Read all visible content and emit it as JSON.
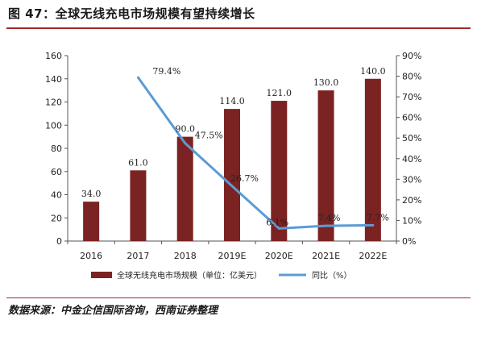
{
  "figure": {
    "title": "图 47：全球无线充电市场规模有望持续增长",
    "source": "数据来源：中金企信国际咨询，西南证券整理"
  },
  "colors": {
    "bar": "#7b2323",
    "line": "#5b9bd5",
    "rule": "#9a2b2b"
  },
  "chart_data": {
    "type": "bar",
    "categories": [
      "2016",
      "2017",
      "2018",
      "2019E",
      "2020E",
      "2021E",
      "2022E"
    ],
    "series": [
      {
        "name": "全球无线充电市场规模（单位：亿美元）",
        "type": "bar",
        "axis": "left",
        "values": [
          34.0,
          61.0,
          90.0,
          114.0,
          121.0,
          130.0,
          140.0
        ],
        "labels": [
          "34.0",
          "61.0",
          "90.0",
          "114.0",
          "121.0",
          "130.0",
          "140.0"
        ]
      },
      {
        "name": "同比（%）",
        "type": "line",
        "axis": "right",
        "values": [
          null,
          79.4,
          47.5,
          26.7,
          6.1,
          7.4,
          7.7
        ],
        "labels": [
          "",
          "79.4%",
          "47.5%",
          "26.7%",
          "6.1%",
          "7.4%",
          "7.7%"
        ]
      }
    ],
    "y_left": {
      "lim": [
        0,
        160
      ],
      "ticks": [
        0,
        20,
        40,
        60,
        80,
        100,
        120,
        140,
        160
      ],
      "tick_labels": [
        "0",
        "20",
        "40",
        "60",
        "80",
        "100",
        "120",
        "140",
        "160"
      ]
    },
    "y_right": {
      "lim": [
        0,
        90
      ],
      "ticks": [
        0,
        10,
        20,
        30,
        40,
        50,
        60,
        70,
        80,
        90
      ],
      "tick_labels": [
        "0%",
        "10%",
        "20%",
        "30%",
        "40%",
        "50%",
        "60%",
        "70%",
        "80%",
        "90%"
      ]
    },
    "grid": false,
    "legend": "bottom"
  }
}
